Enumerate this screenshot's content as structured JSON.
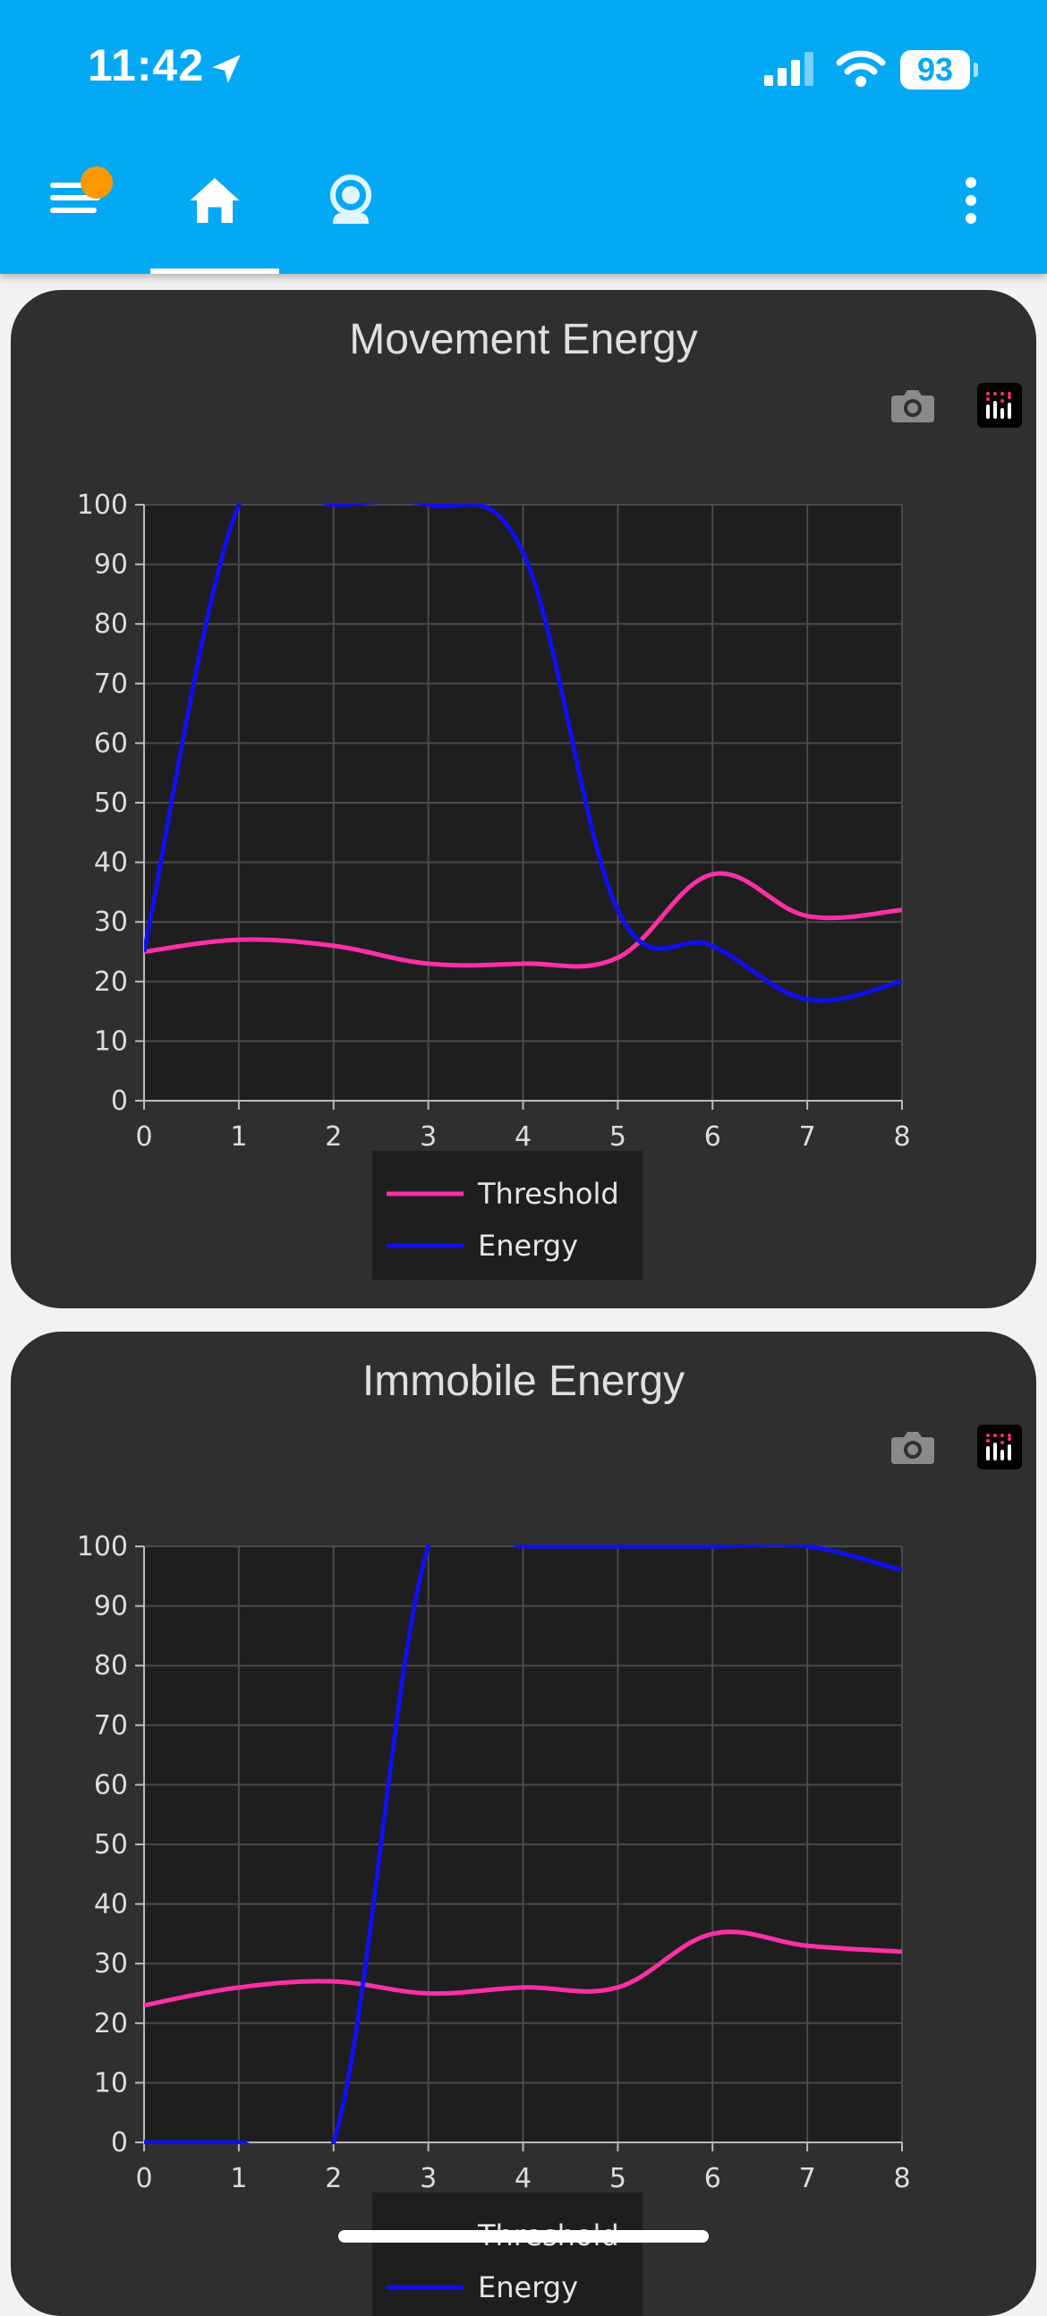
{
  "status_bar": {
    "time": "11:42",
    "battery": "93"
  },
  "nav": {
    "tabs": [
      {
        "name": "home",
        "active": true
      },
      {
        "name": "camera",
        "active": false
      }
    ],
    "accent": "#03a9f4"
  },
  "colors": {
    "threshold": "#ff2fa6",
    "energy": "#1010ee"
  },
  "chart_data": [
    {
      "type": "line",
      "title": "Movement Energy",
      "x": [
        0,
        1,
        2,
        3,
        4,
        5,
        6,
        7,
        8
      ],
      "xlim": [
        0,
        8
      ],
      "ylim": [
        0,
        100
      ],
      "xticks": [
        "0",
        "1",
        "2",
        "3",
        "4",
        "5",
        "6",
        "7",
        "8"
      ],
      "yticks": [
        "0",
        "10",
        "20",
        "30",
        "40",
        "50",
        "60",
        "70",
        "80",
        "90",
        "100"
      ],
      "grid": true,
      "legend": "bottom-center",
      "series": [
        {
          "name": "Threshold",
          "color": "#ff2fa6",
          "values": [
            25,
            27,
            26,
            23,
            23,
            24,
            38,
            31,
            32
          ]
        },
        {
          "name": "Energy",
          "color": "#1010ee",
          "values": [
            25,
            100,
            100,
            100,
            92,
            32,
            26,
            17,
            20
          ]
        }
      ]
    },
    {
      "type": "line",
      "title": "Immobile Energy",
      "x": [
        0,
        1,
        2,
        3,
        4,
        5,
        6,
        7,
        8
      ],
      "xlim": [
        0,
        8
      ],
      "ylim": [
        0,
        100
      ],
      "xticks": [
        "0",
        "1",
        "2",
        "3",
        "4",
        "5",
        "6",
        "7",
        "8"
      ],
      "yticks": [
        "0",
        "10",
        "20",
        "30",
        "40",
        "50",
        "60",
        "70",
        "80",
        "90",
        "100"
      ],
      "grid": true,
      "legend": "bottom-center",
      "series": [
        {
          "name": "Threshold",
          "color": "#ff2fa6",
          "values": [
            23,
            26,
            27,
            25,
            26,
            26,
            35,
            33,
            32
          ]
        },
        {
          "name": "Energy",
          "color": "#1010ee",
          "values": [
            0,
            0,
            0,
            100,
            100,
            100,
            100,
            100,
            96
          ]
        }
      ]
    }
  ]
}
